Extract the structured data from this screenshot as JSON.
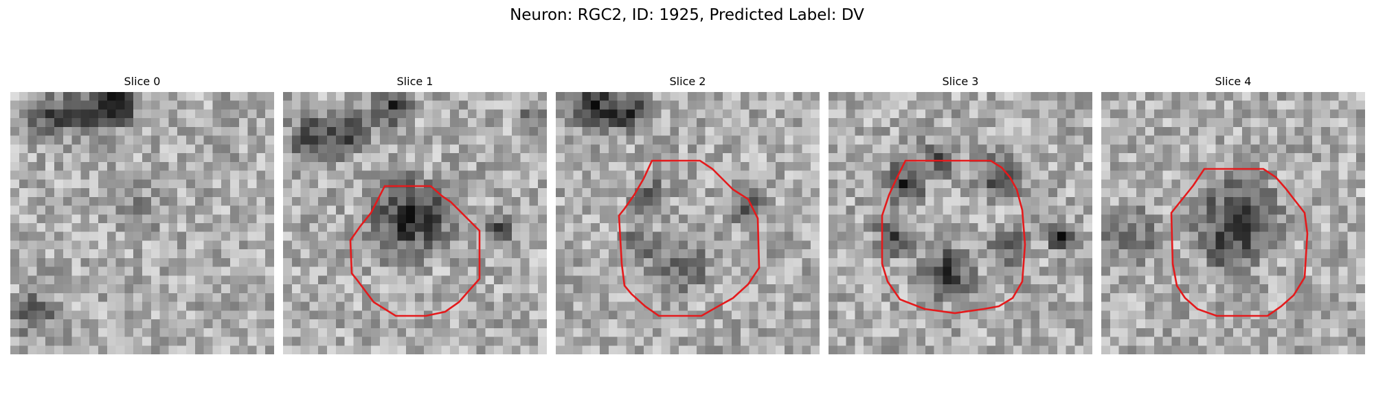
{
  "figure": {
    "title": "Neuron: RGC2, ID: 1925, Predicted Label: DV",
    "contour_color": "#e41a1c"
  },
  "slices": [
    {
      "title": "Slice 0",
      "has_contour": false
    },
    {
      "title": "Slice 1",
      "has_contour": true
    },
    {
      "title": "Slice 2",
      "has_contour": true
    },
    {
      "title": "Slice 3",
      "has_contour": true
    },
    {
      "title": "Slice 4",
      "has_contour": true
    }
  ]
}
